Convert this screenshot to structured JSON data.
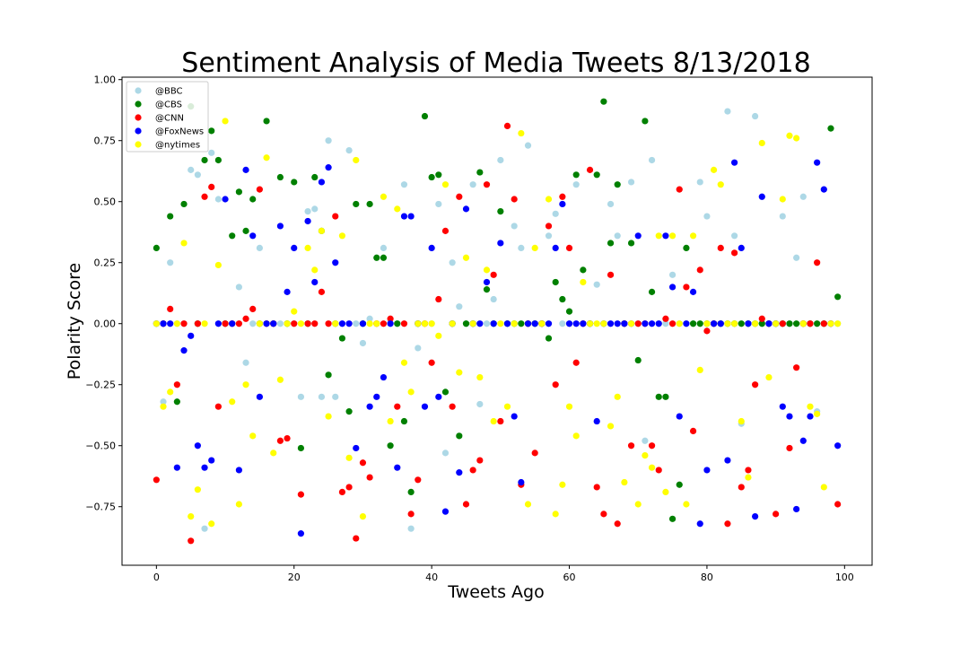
{
  "chart_data": {
    "type": "scatter",
    "title": "Sentiment Analysis of Media Tweets 8/13/2018",
    "xlabel": "Tweets Ago",
    "ylabel": "Polarity Score",
    "xlim": [
      -5,
      104
    ],
    "ylim": [
      -0.99,
      1.01
    ],
    "x_ticks": [
      0,
      20,
      40,
      60,
      80,
      100
    ],
    "y_ticks": [
      -0.75,
      -0.5,
      -0.25,
      0.0,
      0.25,
      0.5,
      0.75,
      1.0
    ],
    "x_tick_labels": [
      "0",
      "20",
      "40",
      "60",
      "80",
      "100"
    ],
    "y_tick_labels": [
      "−0.75",
      "−0.50",
      "−0.25",
      "0.00",
      "0.25",
      "0.50",
      "0.75",
      "1.00"
    ],
    "grid": false,
    "legend_position": "top-left",
    "series": [
      {
        "name": "@BBC",
        "color": "#add8e6",
        "points": [
          [
            1,
            -0.32
          ],
          [
            2,
            0.25
          ],
          [
            5,
            0.63
          ],
          [
            6,
            0.61
          ],
          [
            7,
            -0.84
          ],
          [
            8,
            0.7
          ],
          [
            9,
            0.51
          ],
          [
            12,
            0.15
          ],
          [
            13,
            -0.16
          ],
          [
            15,
            0.31
          ],
          [
            21,
            -0.3
          ],
          [
            22,
            0.46
          ],
          [
            23,
            0.47
          ],
          [
            24,
            -0.3
          ],
          [
            25,
            0.75
          ],
          [
            26,
            -0.3
          ],
          [
            28,
            0.71
          ],
          [
            30,
            -0.08
          ],
          [
            31,
            0.02
          ],
          [
            33,
            0.31
          ],
          [
            36,
            0.57
          ],
          [
            37,
            -0.84
          ],
          [
            38,
            -0.1
          ],
          [
            41,
            0.49
          ],
          [
            42,
            -0.53
          ],
          [
            43,
            0.25
          ],
          [
            44,
            0.07
          ],
          [
            46,
            0.57
          ],
          [
            47,
            -0.33
          ],
          [
            49,
            0.1
          ],
          [
            50,
            0.67
          ],
          [
            52,
            0.4
          ],
          [
            53,
            0.31
          ],
          [
            54,
            0.73
          ],
          [
            57,
            0.36
          ],
          [
            58,
            0.45
          ],
          [
            60,
            0.0
          ],
          [
            61,
            0.57
          ],
          [
            64,
            0.16
          ],
          [
            66,
            0.49
          ],
          [
            67,
            0.36
          ],
          [
            69,
            0.58
          ],
          [
            71,
            -0.48
          ],
          [
            72,
            0.67
          ],
          [
            75,
            0.2
          ],
          [
            77,
            0.0
          ],
          [
            79,
            0.58
          ],
          [
            80,
            0.44
          ],
          [
            83,
            0.87
          ],
          [
            84,
            0.36
          ],
          [
            85,
            -0.41
          ],
          [
            87,
            0.85
          ],
          [
            91,
            0.44
          ],
          [
            93,
            0.27
          ],
          [
            94,
            0.52
          ],
          [
            96,
            -0.36
          ]
        ]
      },
      {
        "name": "@CBS",
        "color": "#008000",
        "points": [
          [
            0,
            0.31
          ],
          [
            2,
            0.44
          ],
          [
            3,
            -0.32
          ],
          [
            4,
            0.49
          ],
          [
            5,
            0.89
          ],
          [
            7,
            0.67
          ],
          [
            8,
            0.79
          ],
          [
            9,
            0.67
          ],
          [
            11,
            0.36
          ],
          [
            12,
            0.54
          ],
          [
            13,
            0.38
          ],
          [
            14,
            0.51
          ],
          [
            16,
            0.83
          ],
          [
            18,
            0.6
          ],
          [
            20,
            0.58
          ],
          [
            21,
            -0.51
          ],
          [
            23,
            0.6
          ],
          [
            24,
            0.38
          ],
          [
            25,
            -0.21
          ],
          [
            27,
            -0.06
          ],
          [
            28,
            -0.36
          ],
          [
            29,
            0.49
          ],
          [
            31,
            0.49
          ],
          [
            32,
            0.27
          ],
          [
            33,
            0.27
          ],
          [
            34,
            -0.5
          ],
          [
            36,
            -0.4
          ],
          [
            37,
            -0.69
          ],
          [
            39,
            0.85
          ],
          [
            40,
            0.6
          ],
          [
            41,
            0.61
          ],
          [
            42,
            -0.28
          ],
          [
            44,
            -0.46
          ],
          [
            47,
            0.62
          ],
          [
            48,
            0.14
          ],
          [
            50,
            0.46
          ],
          [
            53,
            0.0
          ],
          [
            57,
            -0.06
          ],
          [
            58,
            0.17
          ],
          [
            59,
            0.1
          ],
          [
            60,
            0.05
          ],
          [
            61,
            0.61
          ],
          [
            62,
            0.22
          ],
          [
            64,
            0.61
          ],
          [
            65,
            0.91
          ],
          [
            66,
            0.33
          ],
          [
            67,
            0.57
          ],
          [
            69,
            0.33
          ],
          [
            70,
            -0.15
          ],
          [
            71,
            0.83
          ],
          [
            72,
            0.13
          ],
          [
            73,
            -0.3
          ],
          [
            74,
            -0.3
          ],
          [
            75,
            -0.8
          ],
          [
            76,
            -0.66
          ],
          [
            77,
            0.31
          ],
          [
            78,
            0.0
          ],
          [
            89,
            0.0
          ],
          [
            92,
            0.0
          ],
          [
            98,
            0.8
          ],
          [
            99,
            0.11
          ]
        ]
      },
      {
        "name": "@CNN",
        "color": "#ff0000",
        "points": [
          [
            0,
            -0.64
          ],
          [
            2,
            0.06
          ],
          [
            3,
            -0.25
          ],
          [
            5,
            -0.89
          ],
          [
            7,
            0.52
          ],
          [
            8,
            0.56
          ],
          [
            9,
            -0.34
          ],
          [
            13,
            0.02
          ],
          [
            14,
            0.06
          ],
          [
            15,
            0.55
          ],
          [
            18,
            -0.48
          ],
          [
            19,
            -0.47
          ],
          [
            21,
            -0.7
          ],
          [
            24,
            0.13
          ],
          [
            26,
            0.44
          ],
          [
            27,
            -0.69
          ],
          [
            28,
            -0.67
          ],
          [
            29,
            -0.88
          ],
          [
            30,
            -0.57
          ],
          [
            31,
            -0.63
          ],
          [
            34,
            0.02
          ],
          [
            35,
            -0.34
          ],
          [
            37,
            -0.78
          ],
          [
            38,
            -0.64
          ],
          [
            40,
            -0.16
          ],
          [
            41,
            0.1
          ],
          [
            42,
            0.38
          ],
          [
            43,
            -0.34
          ],
          [
            44,
            0.52
          ],
          [
            45,
            -0.74
          ],
          [
            46,
            -0.6
          ],
          [
            47,
            -0.56
          ],
          [
            48,
            0.57
          ],
          [
            49,
            0.2
          ],
          [
            50,
            -0.4
          ],
          [
            51,
            0.81
          ],
          [
            52,
            0.51
          ],
          [
            53,
            -0.66
          ],
          [
            55,
            -0.53
          ],
          [
            57,
            0.4
          ],
          [
            58,
            -0.25
          ],
          [
            59,
            0.52
          ],
          [
            60,
            0.31
          ],
          [
            61,
            -0.16
          ],
          [
            63,
            0.63
          ],
          [
            64,
            -0.67
          ],
          [
            65,
            -0.78
          ],
          [
            66,
            0.2
          ],
          [
            67,
            -0.82
          ],
          [
            69,
            -0.5
          ],
          [
            72,
            -0.5
          ],
          [
            73,
            -0.6
          ],
          [
            74,
            0.02
          ],
          [
            76,
            0.55
          ],
          [
            77,
            0.15
          ],
          [
            78,
            -0.44
          ],
          [
            79,
            0.22
          ],
          [
            80,
            -0.03
          ],
          [
            82,
            0.31
          ],
          [
            83,
            -0.82
          ],
          [
            84,
            0.29
          ],
          [
            85,
            -0.67
          ],
          [
            86,
            -0.6
          ],
          [
            87,
            -0.25
          ],
          [
            88,
            0.02
          ],
          [
            90,
            -0.78
          ],
          [
            92,
            -0.51
          ],
          [
            93,
            -0.18
          ],
          [
            96,
            0.25
          ],
          [
            99,
            -0.74
          ]
        ]
      },
      {
        "name": "@FoxNews",
        "color": "#0000ff",
        "points": [
          [
            1,
            0.0
          ],
          [
            3,
            -0.59
          ],
          [
            4,
            -0.11
          ],
          [
            5,
            -0.05
          ],
          [
            6,
            -0.5
          ],
          [
            7,
            -0.59
          ],
          [
            8,
            -0.56
          ],
          [
            10,
            0.51
          ],
          [
            12,
            -0.6
          ],
          [
            13,
            0.63
          ],
          [
            14,
            0.36
          ],
          [
            15,
            -0.3
          ],
          [
            18,
            0.4
          ],
          [
            19,
            0.13
          ],
          [
            20,
            0.31
          ],
          [
            21,
            -0.86
          ],
          [
            22,
            0.42
          ],
          [
            23,
            0.17
          ],
          [
            24,
            0.58
          ],
          [
            25,
            0.64
          ],
          [
            26,
            0.25
          ],
          [
            29,
            -0.51
          ],
          [
            31,
            -0.34
          ],
          [
            32,
            -0.3
          ],
          [
            33,
            -0.22
          ],
          [
            35,
            -0.59
          ],
          [
            36,
            0.44
          ],
          [
            37,
            0.44
          ],
          [
            39,
            -0.34
          ],
          [
            40,
            0.31
          ],
          [
            41,
            -0.3
          ],
          [
            42,
            -0.77
          ],
          [
            44,
            -0.61
          ],
          [
            45,
            0.47
          ],
          [
            48,
            0.17
          ],
          [
            50,
            0.33
          ],
          [
            52,
            -0.38
          ],
          [
            53,
            -0.65
          ],
          [
            58,
            0.31
          ],
          [
            59,
            0.49
          ],
          [
            64,
            -0.4
          ],
          [
            70,
            0.36
          ],
          [
            74,
            0.36
          ],
          [
            75,
            0.15
          ],
          [
            76,
            -0.38
          ],
          [
            78,
            0.13
          ],
          [
            79,
            -0.82
          ],
          [
            80,
            -0.6
          ],
          [
            83,
            -0.56
          ],
          [
            84,
            0.66
          ],
          [
            85,
            0.31
          ],
          [
            87,
            -0.79
          ],
          [
            88,
            0.52
          ],
          [
            91,
            -0.34
          ],
          [
            92,
            -0.38
          ],
          [
            93,
            -0.76
          ],
          [
            94,
            -0.48
          ],
          [
            95,
            -0.38
          ],
          [
            96,
            0.66
          ],
          [
            97,
            0.55
          ],
          [
            99,
            -0.5
          ]
        ]
      },
      {
        "name": "@nytimes",
        "color": "#ffff00",
        "points": [
          [
            1,
            -0.34
          ],
          [
            2,
            -0.28
          ],
          [
            4,
            0.33
          ],
          [
            5,
            -0.79
          ],
          [
            6,
            -0.68
          ],
          [
            8,
            -0.82
          ],
          [
            9,
            0.24
          ],
          [
            10,
            0.83
          ],
          [
            11,
            -0.32
          ],
          [
            12,
            -0.74
          ],
          [
            13,
            -0.25
          ],
          [
            14,
            -0.46
          ],
          [
            16,
            0.68
          ],
          [
            17,
            -0.53
          ],
          [
            18,
            -0.23
          ],
          [
            20,
            0.05
          ],
          [
            22,
            0.31
          ],
          [
            23,
            0.22
          ],
          [
            24,
            0.38
          ],
          [
            25,
            -0.38
          ],
          [
            27,
            0.36
          ],
          [
            28,
            -0.55
          ],
          [
            29,
            0.67
          ],
          [
            30,
            -0.79
          ],
          [
            33,
            0.52
          ],
          [
            34,
            -0.4
          ],
          [
            35,
            0.47
          ],
          [
            36,
            -0.16
          ],
          [
            37,
            -0.28
          ],
          [
            41,
            -0.05
          ],
          [
            42,
            0.57
          ],
          [
            44,
            -0.2
          ],
          [
            45,
            0.27
          ],
          [
            47,
            -0.22
          ],
          [
            48,
            0.22
          ],
          [
            49,
            -0.4
          ],
          [
            51,
            -0.34
          ],
          [
            53,
            0.78
          ],
          [
            54,
            -0.74
          ],
          [
            55,
            0.31
          ],
          [
            57,
            0.51
          ],
          [
            58,
            -0.78
          ],
          [
            59,
            -0.66
          ],
          [
            60,
            -0.34
          ],
          [
            61,
            -0.46
          ],
          [
            62,
            0.17
          ],
          [
            66,
            -0.42
          ],
          [
            67,
            -0.3
          ],
          [
            68,
            -0.65
          ],
          [
            70,
            -0.74
          ],
          [
            71,
            -0.54
          ],
          [
            72,
            -0.59
          ],
          [
            73,
            0.36
          ],
          [
            74,
            -0.69
          ],
          [
            75,
            0.36
          ],
          [
            77,
            -0.74
          ],
          [
            78,
            0.36
          ],
          [
            79,
            -0.19
          ],
          [
            81,
            0.63
          ],
          [
            82,
            0.57
          ],
          [
            85,
            -0.4
          ],
          [
            86,
            -0.63
          ],
          [
            88,
            0.74
          ],
          [
            89,
            -0.22
          ],
          [
            91,
            0.51
          ],
          [
            92,
            0.77
          ],
          [
            93,
            0.76
          ],
          [
            95,
            -0.34
          ],
          [
            96,
            -0.37
          ],
          [
            97,
            -0.67
          ]
        ]
      }
    ]
  }
}
